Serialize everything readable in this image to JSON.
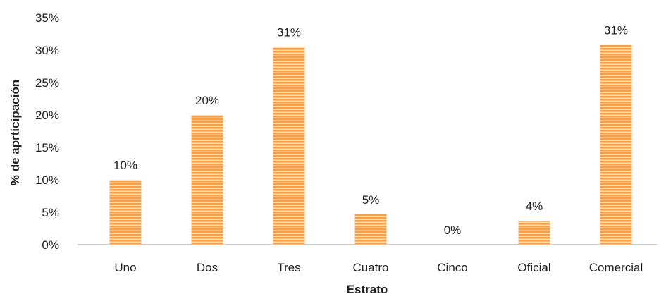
{
  "chart_data": {
    "type": "bar",
    "title": "",
    "xlabel": "Estrato",
    "ylabel": "% de aprticipación",
    "categories": [
      "Uno",
      "Dos",
      "Tres",
      "Cuatro",
      "Cinco",
      "Oficial",
      "Comercial"
    ],
    "values": [
      10,
      20,
      31,
      5,
      0,
      4,
      31
    ],
    "data_labels": [
      "10%",
      "20%",
      "31%",
      "5%",
      "0%",
      "4%",
      "31%"
    ],
    "bar_values_estimated": [
      10,
      20,
      30.5,
      4.7,
      0,
      3.7,
      30.8
    ],
    "ylim": [
      0,
      35
    ],
    "yticks": [
      0,
      5,
      10,
      15,
      20,
      25,
      30,
      35
    ],
    "ytick_labels": [
      "0%",
      "5%",
      "10%",
      "15%",
      "20%",
      "25%",
      "30%",
      "35%"
    ],
    "grid": false,
    "legend": "none",
    "colors": {
      "bar": "#f5a04a",
      "bar_stripe": "#fde2bf",
      "axis": "#999999",
      "text": "#222222"
    }
  }
}
